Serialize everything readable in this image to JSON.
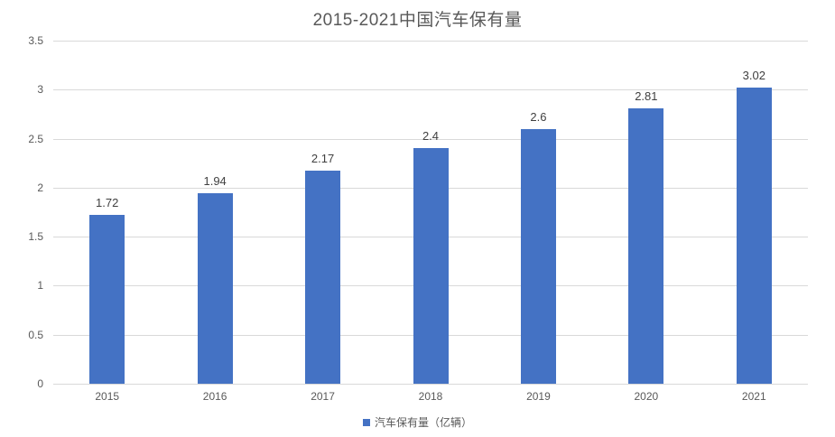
{
  "chart_data": {
    "type": "bar",
    "title": "2015-2021中国汽车保有量",
    "categories": [
      "2015",
      "2016",
      "2017",
      "2018",
      "2019",
      "2020",
      "2021"
    ],
    "values": [
      1.72,
      1.94,
      2.17,
      2.4,
      2.6,
      2.81,
      3.02
    ],
    "value_labels": [
      "1.72",
      "1.94",
      "2.17",
      "2.4",
      "2.6",
      "2.81",
      "3.02"
    ],
    "series_name": "汽车保有量（亿辆）",
    "xlabel": "",
    "ylabel": "",
    "ylim": [
      0,
      3.5
    ],
    "ytick_step": 0.5,
    "yticks": [
      "0",
      "0.5",
      "1",
      "1.5",
      "2",
      "2.5",
      "3",
      "3.5"
    ],
    "grid": true,
    "legend": {
      "label": "汽车保有量（亿辆）",
      "position": "bottom"
    }
  },
  "colors": {
    "bar": "#4472C4",
    "gridline": "#D9D9D9",
    "axis_text": "#595959",
    "title_text": "#595959",
    "data_label": "#404040",
    "background": "#FFFFFF"
  }
}
